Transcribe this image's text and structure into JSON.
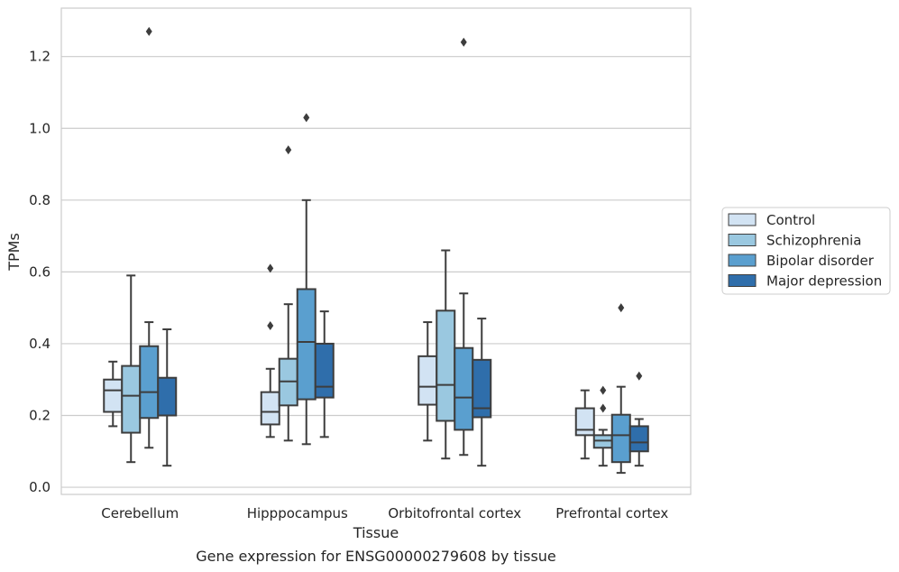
{
  "caption": "Gene expression for ENSG00000279608 by tissue",
  "colors": {
    "grid": "#cccccc",
    "axes_edge": "#cccccc",
    "box_edge": "#3d3d3d",
    "text": "#262626"
  },
  "chart_data": {
    "type": "box",
    "title": "",
    "xlabel": "Tissue",
    "ylabel": "TPMs",
    "ylim": [
      -0.02,
      1.335
    ],
    "yticks": [
      0.0,
      0.2,
      0.4,
      0.6,
      0.8,
      1.0,
      1.2
    ],
    "ytick_labels": [
      "0.0",
      "0.2",
      "0.4",
      "0.6",
      "0.8",
      "1.0",
      "1.2"
    ],
    "grid": "horizontal",
    "legend_position": "right",
    "categories": [
      "Cerebellum",
      "Hipppocampus",
      "Orbitofrontal cortex",
      "Prefrontal cortex"
    ],
    "series": [
      {
        "name": "Control",
        "color": "#d2e3f3",
        "boxes": [
          {
            "whisker_low": 0.17,
            "q1": 0.21,
            "median": 0.27,
            "q3": 0.3,
            "whisker_high": 0.35,
            "outliers": []
          },
          {
            "whisker_low": 0.14,
            "q1": 0.175,
            "median": 0.21,
            "q3": 0.265,
            "whisker_high": 0.33,
            "outliers": [
              0.45,
              0.61
            ]
          },
          {
            "whisker_low": 0.13,
            "q1": 0.23,
            "median": 0.28,
            "q3": 0.365,
            "whisker_high": 0.46,
            "outliers": []
          },
          {
            "whisker_low": 0.08,
            "q1": 0.145,
            "median": 0.16,
            "q3": 0.22,
            "whisker_high": 0.27,
            "outliers": []
          }
        ]
      },
      {
        "name": "Schizophrenia",
        "color": "#9ac8e0",
        "boxes": [
          {
            "whisker_low": 0.07,
            "q1": 0.152,
            "median": 0.255,
            "q3": 0.338,
            "whisker_high": 0.59,
            "outliers": []
          },
          {
            "whisker_low": 0.13,
            "q1": 0.228,
            "median": 0.295,
            "q3": 0.358,
            "whisker_high": 0.51,
            "outliers": [
              0.94
            ]
          },
          {
            "whisker_low": 0.08,
            "q1": 0.185,
            "median": 0.285,
            "q3": 0.492,
            "whisker_high": 0.66,
            "outliers": []
          },
          {
            "whisker_low": 0.06,
            "q1": 0.11,
            "median": 0.13,
            "q3": 0.145,
            "whisker_high": 0.16,
            "outliers": [
              0.22,
              0.27
            ]
          }
        ]
      },
      {
        "name": "Bipolar disorder",
        "color": "#5a9fcf",
        "boxes": [
          {
            "whisker_low": 0.11,
            "q1": 0.193,
            "median": 0.265,
            "q3": 0.393,
            "whisker_high": 0.46,
            "outliers": [
              1.27
            ]
          },
          {
            "whisker_low": 0.12,
            "q1": 0.245,
            "median": 0.405,
            "q3": 0.552,
            "whisker_high": 0.8,
            "outliers": [
              1.03
            ]
          },
          {
            "whisker_low": 0.09,
            "q1": 0.16,
            "median": 0.25,
            "q3": 0.388,
            "whisker_high": 0.54,
            "outliers": [
              1.24
            ]
          },
          {
            "whisker_low": 0.04,
            "q1": 0.07,
            "median": 0.145,
            "q3": 0.202,
            "whisker_high": 0.28,
            "outliers": [
              0.5
            ]
          }
        ]
      },
      {
        "name": "Major depression",
        "color": "#2f6eab",
        "boxes": [
          {
            "whisker_low": 0.06,
            "q1": 0.2,
            "median": 0.2,
            "q3": 0.305,
            "whisker_high": 0.44,
            "outliers": []
          },
          {
            "whisker_low": 0.14,
            "q1": 0.25,
            "median": 0.28,
            "q3": 0.4,
            "whisker_high": 0.49,
            "outliers": []
          },
          {
            "whisker_low": 0.06,
            "q1": 0.195,
            "median": 0.22,
            "q3": 0.355,
            "whisker_high": 0.47,
            "outliers": []
          },
          {
            "whisker_low": 0.06,
            "q1": 0.1,
            "median": 0.125,
            "q3": 0.17,
            "whisker_high": 0.19,
            "outliers": [
              0.31
            ]
          }
        ]
      }
    ]
  }
}
